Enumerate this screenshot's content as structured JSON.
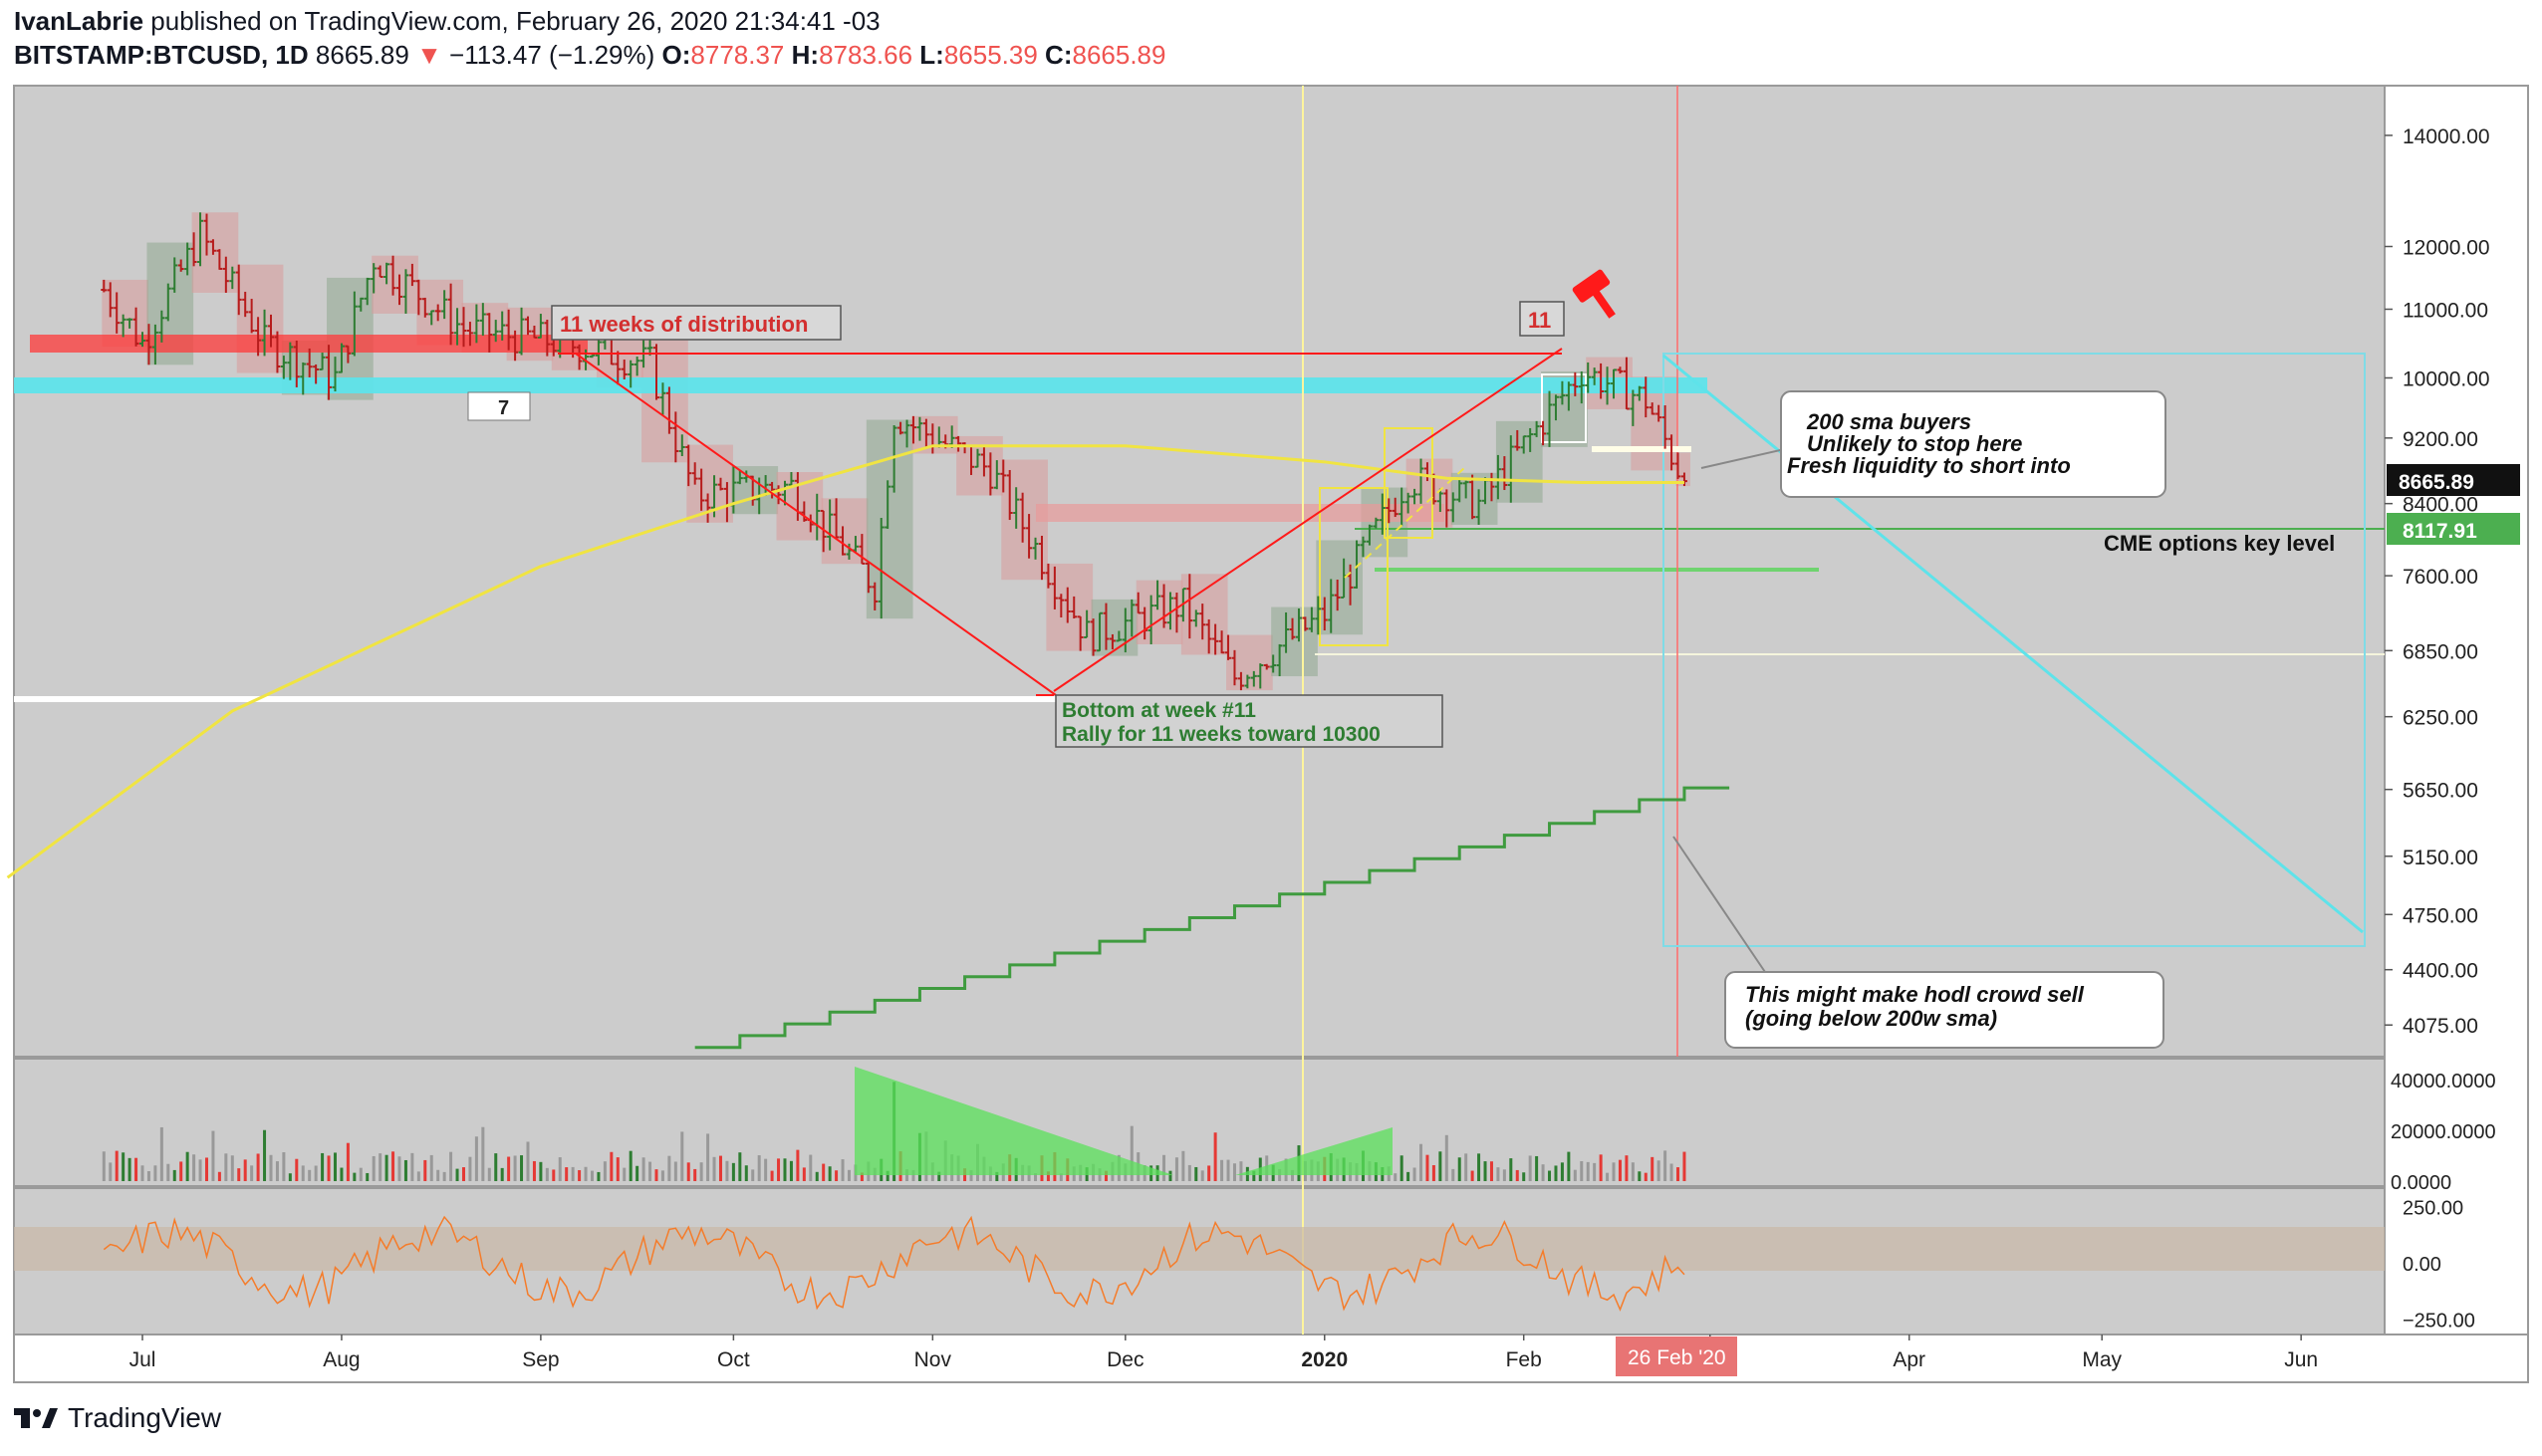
{
  "header": {
    "publisher": "IvanLabrie",
    "published_text": "published on TradingView.com, February 26, 2020 21:34:41 -03",
    "symbol": "BITSTAMP:BTCUSD, 1D",
    "price": "8665.89",
    "change_arrow": "▼",
    "change": "−113.47 (−1.29%)",
    "o_label": "O:",
    "o_value": "8778.37",
    "h_label": "H:",
    "h_value": "8783.66",
    "l_label": "L:",
    "l_value": "8655.39",
    "c_label": "C:",
    "c_value": "8665.89"
  },
  "footer": {
    "brand": "TradingView",
    "logo_icon": "tradingview-logo-icon"
  },
  "colors": {
    "panel_bg": "#cccccc",
    "up": "#2e7d32",
    "down": "#c62828",
    "sma50": "#f0e442",
    "cyan": "#4dd9e0",
    "sma200w": "#3f9b3f",
    "red_line": "#ff1a1a",
    "label_red": "#ef5350",
    "cme_green": "#4caf50"
  },
  "annotations": {
    "distribution": "11 weeks of distribution",
    "weeks_count": "11",
    "badge_seven": "7",
    "bottom_line1": "Bottom at week #11",
    "bottom_line2": "Rally for 11 weeks toward 10300",
    "callout1_line1": "200 sma buyers",
    "callout1_line2": "Unlikely to stop here",
    "callout1_line3": "Fresh liquidity to short into",
    "callout2_line1": "This might make hodl crowd sell",
    "callout2_line2": "(going below 200w sma)",
    "cme_label": "CME options key level",
    "gavel_icon": "gavel-icon"
  },
  "chart_data": [
    {
      "type": "candlestick",
      "symbol": "BITSTAMP:BTCUSD",
      "interval": "1D",
      "scale": "log",
      "x_ticks": [
        "Jul",
        "Aug",
        "Sep",
        "Oct",
        "Nov",
        "Dec",
        "2020",
        "Feb",
        "Mar",
        "Apr",
        "May",
        "Jun"
      ],
      "y_ticks": [
        "14000.00",
        "12000.00",
        "11000.00",
        "10000.00",
        "9200.00",
        "8400.00",
        "7600.00",
        "6850.00",
        "6250.00",
        "5650.00",
        "5150.00",
        "4750.00",
        "4400.00",
        "4075.00"
      ],
      "ylim": [
        3900,
        15000
      ],
      "last_price_label": "8665.89",
      "cme_level_label": "8117.91",
      "cursor_date_label": "26 Feb '20",
      "approx_closes_by_month": [
        {
          "date": "2019-06-25",
          "close": 11300
        },
        {
          "date": "2019-07-01",
          "close": 10500
        },
        {
          "date": "2019-07-10",
          "close": 12200
        },
        {
          "date": "2019-07-20",
          "close": 10500
        },
        {
          "date": "2019-07-31",
          "close": 10000
        },
        {
          "date": "2019-08-06",
          "close": 11800
        },
        {
          "date": "2019-08-20",
          "close": 10700
        },
        {
          "date": "2019-09-05",
          "close": 10500
        },
        {
          "date": "2019-09-18",
          "close": 10200
        },
        {
          "date": "2019-09-25",
          "close": 8500
        },
        {
          "date": "2019-10-10",
          "close": 8600
        },
        {
          "date": "2019-10-23",
          "close": 7500
        },
        {
          "date": "2019-10-26",
          "close": 9500
        },
        {
          "date": "2019-11-10",
          "close": 8800
        },
        {
          "date": "2019-11-25",
          "close": 7000
        },
        {
          "date": "2019-12-10",
          "close": 7300
        },
        {
          "date": "2019-12-18",
          "close": 6600
        },
        {
          "date": "2020-01-01",
          "close": 7200
        },
        {
          "date": "2020-01-14",
          "close": 8700
        },
        {
          "date": "2020-01-25",
          "close": 8400
        },
        {
          "date": "2020-02-10",
          "close": 10100
        },
        {
          "date": "2020-02-20",
          "close": 9700
        },
        {
          "date": "2020-02-26",
          "close": 8665.89
        }
      ]
    },
    {
      "type": "bar",
      "name": "Volume",
      "y_ticks": [
        "40000.0000",
        "20000.0000",
        "0.0000"
      ],
      "ylim": [
        0,
        45000
      ]
    },
    {
      "type": "line",
      "name": "Oscillator",
      "y_ticks": [
        "250.00",
        "0.00",
        "−250.00"
      ],
      "ylim": [
        -300,
        300
      ],
      "band": [
        -100,
        100
      ]
    }
  ]
}
